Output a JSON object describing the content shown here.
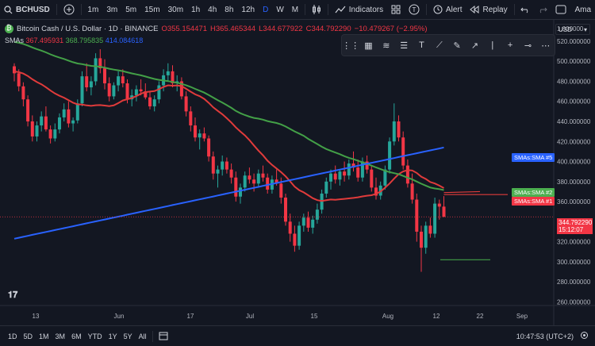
{
  "topbar": {
    "symbol": "BCHUSD",
    "intervals": [
      "1m",
      "3m",
      "5m",
      "15m",
      "30m",
      "1h",
      "4h",
      "8h",
      "12h",
      "D",
      "W",
      "M"
    ],
    "active_interval": "D",
    "indicators_label": "Indicators",
    "alert_label": "Alert",
    "replay_label": "Replay",
    "user_label": "Ama"
  },
  "legend": {
    "title": "Bitcoin Cash / U.S. Dollar · 1D · BINANCE",
    "o": "O355.154471",
    "h": "H365.465344",
    "l": "L344.677922",
    "c": "C344.792290",
    "change": "−10.479267 (−2.95%)",
    "sma_label": "SMAs",
    "sma1": "367.495931",
    "sma2": "368.795835",
    "sma3": "414.084618"
  },
  "currency": "USD",
  "price_axis": {
    "ticks": [
      "1.000000",
      "520.000000",
      "500.000000",
      "480.000000",
      "460.000000",
      "440.000000",
      "420.000000",
      "400.000000",
      "380.000000",
      "360.000000",
      "340.000000",
      "320.000000",
      "300.000000",
      "280.000000",
      "260.000000"
    ],
    "current_price": "344.792290",
    "countdown": "15:12:07"
  },
  "time_axis": {
    "ticks": [
      "13",
      "Jun",
      "17",
      "Jul",
      "15",
      "Aug",
      "12",
      "22",
      "Sep"
    ]
  },
  "tags": {
    "sma5": "SMAs:SMA #5",
    "sma2": "SMAs:SMA #2",
    "sma1": "SMAs:SMA #1"
  },
  "bottombar": {
    "ranges": [
      "1D",
      "5D",
      "1M",
      "3M",
      "6M",
      "YTD",
      "1Y",
      "5Y",
      "All"
    ],
    "clock": "10:47:53 (UTC+2)"
  },
  "colors": {
    "up": "#26a69a",
    "down": "#f23645",
    "sma_red": "#e03b3b",
    "sma_green": "#43a047",
    "sma_blue": "#2962ff",
    "bg": "#131722",
    "tag_red": "#f23645",
    "tag_green": "#4caf50",
    "tag_blue": "#2962ff"
  },
  "icons": [
    "plus-icon",
    "candles-icon",
    "indicators-icon",
    "templates-icon",
    "alert-icon",
    "replay-icon",
    "undo-icon",
    "redo-icon",
    "fullscreen-icon",
    "tradingview-logo",
    "calendar-range-icon",
    "settings-icon"
  ],
  "chart_data": {
    "type": "candlestick",
    "y_range": [
      250,
      535
    ],
    "candles": [
      [
        495,
        498,
        480,
        488
      ],
      [
        488,
        492,
        470,
        475
      ],
      [
        475,
        479,
        455,
        462
      ],
      [
        462,
        466,
        435,
        440
      ],
      [
        440,
        446,
        420,
        425
      ],
      [
        425,
        440,
        420,
        436
      ],
      [
        436,
        450,
        430,
        445
      ],
      [
        445,
        455,
        430,
        432
      ],
      [
        432,
        436,
        418,
        423
      ],
      [
        423,
        438,
        420,
        432
      ],
      [
        432,
        448,
        428,
        444
      ],
      [
        444,
        458,
        440,
        452
      ],
      [
        452,
        460,
        434,
        438
      ],
      [
        438,
        444,
        430,
        441
      ],
      [
        441,
        462,
        438,
        458
      ],
      [
        458,
        490,
        455,
        485
      ],
      [
        485,
        498,
        470,
        474
      ],
      [
        474,
        485,
        466,
        480
      ],
      [
        480,
        508,
        476,
        503
      ],
      [
        503,
        512,
        488,
        493
      ],
      [
        493,
        502,
        472,
        478
      ],
      [
        478,
        484,
        460,
        465
      ],
      [
        465,
        479,
        462,
        476
      ],
      [
        476,
        490,
        470,
        485
      ],
      [
        485,
        492,
        474,
        478
      ],
      [
        478,
        482,
        458,
        462
      ],
      [
        462,
        472,
        455,
        466
      ],
      [
        466,
        476,
        460,
        472
      ],
      [
        472,
        482,
        466,
        470
      ],
      [
        470,
        478,
        462,
        464
      ],
      [
        464,
        470,
        452,
        455
      ],
      [
        455,
        466,
        450,
        462
      ],
      [
        462,
        480,
        458,
        476
      ],
      [
        476,
        492,
        470,
        486
      ],
      [
        486,
        498,
        480,
        490
      ],
      [
        490,
        496,
        474,
        478
      ],
      [
        478,
        486,
        470,
        480
      ],
      [
        480,
        484,
        462,
        465
      ],
      [
        465,
        470,
        445,
        450
      ],
      [
        450,
        455,
        430,
        436
      ],
      [
        436,
        444,
        420,
        424
      ],
      [
        424,
        432,
        412,
        428
      ],
      [
        428,
        434,
        420,
        423
      ],
      [
        423,
        426,
        400,
        405
      ],
      [
        405,
        410,
        382,
        388
      ],
      [
        388,
        396,
        374,
        392
      ],
      [
        392,
        406,
        386,
        400
      ],
      [
        400,
        404,
        388,
        392
      ],
      [
        392,
        398,
        378,
        384
      ],
      [
        384,
        390,
        360,
        365
      ],
      [
        365,
        378,
        358,
        374
      ],
      [
        374,
        390,
        370,
        386
      ],
      [
        386,
        394,
        378,
        382
      ],
      [
        382,
        388,
        370,
        378
      ],
      [
        378,
        392,
        374,
        388
      ],
      [
        388,
        396,
        380,
        384
      ],
      [
        384,
        388,
        368,
        372
      ],
      [
        372,
        386,
        368,
        382
      ],
      [
        382,
        392,
        376,
        378
      ],
      [
        378,
        384,
        358,
        364
      ],
      [
        364,
        368,
        336,
        340
      ],
      [
        340,
        348,
        320,
        328
      ],
      [
        328,
        336,
        310,
        316
      ],
      [
        316,
        340,
        312,
        336
      ],
      [
        336,
        348,
        330,
        344
      ],
      [
        344,
        350,
        330,
        334
      ],
      [
        334,
        346,
        328,
        342
      ],
      [
        342,
        358,
        338,
        352
      ],
      [
        352,
        372,
        348,
        368
      ],
      [
        368,
        384,
        364,
        380
      ],
      [
        380,
        392,
        372,
        388
      ],
      [
        388,
        396,
        378,
        382
      ],
      [
        382,
        392,
        376,
        390
      ],
      [
        390,
        400,
        380,
        386
      ],
      [
        386,
        402,
        382,
        398
      ],
      [
        398,
        410,
        390,
        394
      ],
      [
        394,
        402,
        380,
        384
      ],
      [
        384,
        404,
        380,
        400
      ],
      [
        400,
        406,
        388,
        392
      ],
      [
        392,
        396,
        370,
        374
      ],
      [
        374,
        384,
        362,
        366
      ],
      [
        366,
        380,
        362,
        376
      ],
      [
        376,
        396,
        372,
        392
      ],
      [
        392,
        424,
        388,
        420
      ],
      [
        420,
        458,
        416,
        440
      ],
      [
        440,
        446,
        420,
        424
      ],
      [
        424,
        430,
        392,
        396
      ],
      [
        396,
        402,
        374,
        378
      ],
      [
        378,
        388,
        358,
        362
      ],
      [
        362,
        368,
        320,
        330
      ],
      [
        330,
        336,
        290,
        314
      ],
      [
        314,
        340,
        308,
        336
      ],
      [
        336,
        344,
        324,
        328
      ],
      [
        328,
        364,
        324,
        358
      ],
      [
        358,
        362,
        342,
        355
      ],
      [
        355,
        365.47,
        344.68,
        344.79
      ]
    ]
  }
}
